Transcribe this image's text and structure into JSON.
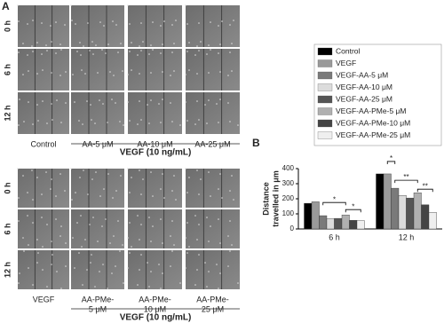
{
  "figure": {
    "panel_a_label": "A",
    "panel_b_label": "B",
    "top": {
      "row_labels": [
        "0 h",
        "6 h",
        "12 h"
      ],
      "column_labels": [
        [
          "Control"
        ],
        [
          "AA-5 μM"
        ],
        [
          "AA-10 μM"
        ],
        [
          "AA-25 μM"
        ]
      ],
      "group_label": "VEGF (10 ng/mL)"
    },
    "bottom": {
      "row_labels": [
        "0 h",
        "6 h",
        "12 h"
      ],
      "column_labels": [
        [
          "VEGF"
        ],
        [
          "AA-PMe-",
          "5 μM"
        ],
        [
          "AA-PMe-",
          "10 μM"
        ],
        [
          "AA-PMe-",
          "25 μM"
        ]
      ],
      "group_label": "VEGF (10 ng/mL)"
    }
  },
  "chart_data": {
    "type": "bar",
    "ylabel": [
      "Distance",
      "travelled in μm"
    ],
    "categories": [
      "6 h",
      "12 h"
    ],
    "series": [
      {
        "name": "Control",
        "color": "#000000",
        "values": [
          170,
          365
        ]
      },
      {
        "name": "VEGF",
        "color": "#9a9a9a",
        "values": [
          180,
          365
        ]
      },
      {
        "name": "VEGF-AA-5 μM",
        "color": "#7a7a7a",
        "values": [
          88,
          270
        ]
      },
      {
        "name": "VEGF-AA-10 μM",
        "color": "#dcdcdc",
        "values": [
          68,
          222
        ]
      },
      {
        "name": "VEGF-AA-25 μM",
        "color": "#555555",
        "values": [
          70,
          205
        ]
      },
      {
        "name": "VEGF-AA-PMe-5 μM",
        "color": "#b0b0b0",
        "values": [
          93,
          240
        ]
      },
      {
        "name": "VEGF-AA-PMe-10 μM",
        "color": "#444444",
        "values": [
          57,
          160
        ]
      },
      {
        "name": "VEGF-AA-PMe-25 μM",
        "color": "#efefef",
        "values": [
          55,
          110
        ]
      }
    ],
    "ylim": [
      0,
      400
    ],
    "yticks": [
      0,
      100,
      200,
      300,
      400
    ],
    "annotations": [
      "*",
      "*",
      "*",
      "**",
      "**"
    ]
  }
}
